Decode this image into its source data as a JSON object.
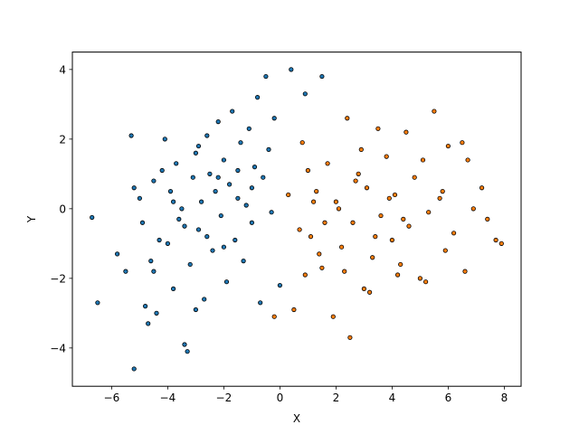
{
  "chart_data": {
    "type": "scatter",
    "title": "",
    "xlabel": "X",
    "ylabel": "Y",
    "xlim": [
      -7.4,
      8.6
    ],
    "ylim": [
      -5.1,
      4.5
    ],
    "xticks": [
      -6,
      -4,
      -2,
      0,
      2,
      4,
      6,
      8
    ],
    "yticks": [
      -4,
      -2,
      0,
      2,
      4
    ],
    "xtick_labels": [
      "−6",
      "−4",
      "−2",
      "0",
      "2",
      "4",
      "6",
      "8"
    ],
    "ytick_labels": [
      "−4",
      "−2",
      "0",
      "2",
      "4"
    ],
    "grid": false,
    "legend": "none",
    "series": [
      {
        "color": "#1f77b4",
        "edgecolor": "#000000",
        "points": [
          [
            -6.7,
            -0.25
          ],
          [
            -6.5,
            -2.7
          ],
          [
            -5.8,
            -1.3
          ],
          [
            -5.5,
            -1.8
          ],
          [
            -5.3,
            2.1
          ],
          [
            -5.2,
            0.6
          ],
          [
            -5.0,
            0.3
          ],
          [
            -4.9,
            -0.4
          ],
          [
            -4.8,
            -2.8
          ],
          [
            -4.7,
            -3.3
          ],
          [
            -4.6,
            -1.5
          ],
          [
            -4.5,
            0.8
          ],
          [
            -4.4,
            -3.0
          ],
          [
            -4.3,
            -0.9
          ],
          [
            -4.2,
            1.1
          ],
          [
            -4.1,
            2.0
          ],
          [
            -4.0,
            -1.0
          ],
          [
            -3.9,
            0.5
          ],
          [
            -3.8,
            -2.3
          ],
          [
            -3.7,
            1.3
          ],
          [
            -3.6,
            -0.3
          ],
          [
            -3.5,
            0.0
          ],
          [
            -3.4,
            -3.9
          ],
          [
            -3.3,
            -4.1
          ],
          [
            -3.2,
            -1.6
          ],
          [
            -3.1,
            0.9
          ],
          [
            -3.0,
            1.6
          ],
          [
            -2.9,
            -0.6
          ],
          [
            -2.8,
            0.2
          ],
          [
            -2.7,
            -2.6
          ],
          [
            -2.6,
            2.1
          ],
          [
            -2.5,
            1.0
          ],
          [
            -2.4,
            -1.2
          ],
          [
            -2.3,
            0.5
          ],
          [
            -2.2,
            2.5
          ],
          [
            -2.1,
            -0.2
          ],
          [
            -2.0,
            1.4
          ],
          [
            -1.9,
            -2.1
          ],
          [
            -1.8,
            0.7
          ],
          [
            -1.7,
            2.8
          ],
          [
            -1.6,
            -0.9
          ],
          [
            -1.5,
            0.3
          ],
          [
            -1.4,
            1.9
          ],
          [
            -1.3,
            -1.5
          ],
          [
            -1.2,
            0.1
          ],
          [
            -1.1,
            2.3
          ],
          [
            -1.0,
            -0.4
          ],
          [
            -0.9,
            1.2
          ],
          [
            -0.8,
            3.2
          ],
          [
            -0.7,
            -2.7
          ],
          [
            -0.6,
            0.9
          ],
          [
            -0.5,
            3.8
          ],
          [
            -0.4,
            1.7
          ],
          [
            -0.3,
            -0.1
          ],
          [
            -0.2,
            2.6
          ],
          [
            0.0,
            -2.2
          ],
          [
            0.4,
            4.0
          ],
          [
            0.9,
            3.3
          ],
          [
            1.5,
            3.8
          ],
          [
            -2.9,
            1.8
          ],
          [
            -3.4,
            -0.5
          ],
          [
            -2.2,
            0.9
          ],
          [
            -1.5,
            1.1
          ],
          [
            -1.0,
            0.6
          ],
          [
            -2.6,
            -0.8
          ],
          [
            -3.8,
            0.2
          ],
          [
            -4.5,
            -1.8
          ],
          [
            -5.2,
            -4.6
          ],
          [
            -3.0,
            -2.9
          ],
          [
            -2.0,
            -1.1
          ]
        ]
      },
      {
        "color": "#ff7f0e",
        "edgecolor": "#000000",
        "points": [
          [
            -0.2,
            -3.1
          ],
          [
            0.5,
            -2.9
          ],
          [
            0.8,
            1.9
          ],
          [
            1.1,
            -0.8
          ],
          [
            1.3,
            0.5
          ],
          [
            1.5,
            -1.7
          ],
          [
            1.7,
            1.3
          ],
          [
            1.9,
            -3.1
          ],
          [
            2.0,
            0.2
          ],
          [
            2.2,
            -1.1
          ],
          [
            2.4,
            2.6
          ],
          [
            2.5,
            -3.7
          ],
          [
            2.6,
            -0.4
          ],
          [
            2.8,
            1.0
          ],
          [
            3.0,
            -2.3
          ],
          [
            3.1,
            0.6
          ],
          [
            3.3,
            -1.4
          ],
          [
            3.5,
            2.3
          ],
          [
            3.6,
            -0.2
          ],
          [
            3.8,
            1.5
          ],
          [
            4.0,
            -0.9
          ],
          [
            4.1,
            0.4
          ],
          [
            4.3,
            -1.6
          ],
          [
            4.5,
            2.2
          ],
          [
            4.6,
            -0.5
          ],
          [
            4.8,
            0.9
          ],
          [
            5.0,
            -2.0
          ],
          [
            5.1,
            1.4
          ],
          [
            5.3,
            -0.1
          ],
          [
            5.5,
            2.8
          ],
          [
            5.7,
            0.3
          ],
          [
            5.9,
            -1.2
          ],
          [
            6.0,
            1.8
          ],
          [
            6.2,
            -0.7
          ],
          [
            6.5,
            1.9
          ],
          [
            6.7,
            1.4
          ],
          [
            6.9,
            0.0
          ],
          [
            7.2,
            0.6
          ],
          [
            7.4,
            -0.3
          ],
          [
            7.7,
            -0.9
          ],
          [
            7.9,
            -1.0
          ],
          [
            6.6,
            -1.8
          ],
          [
            5.2,
            -2.1
          ],
          [
            4.2,
            -1.9
          ],
          [
            3.2,
            -2.4
          ],
          [
            2.3,
            -1.8
          ],
          [
            1.4,
            -1.3
          ],
          [
            0.7,
            -0.6
          ],
          [
            0.3,
            0.4
          ],
          [
            1.0,
            1.1
          ],
          [
            2.7,
            0.8
          ],
          [
            3.9,
            0.3
          ],
          [
            4.4,
            -0.3
          ],
          [
            2.1,
            0.0
          ],
          [
            1.6,
            -0.4
          ],
          [
            3.4,
            -0.8
          ],
          [
            2.9,
            1.7
          ],
          [
            0.9,
            -1.9
          ],
          [
            1.2,
            0.2
          ],
          [
            5.8,
            0.5
          ]
        ]
      }
    ]
  }
}
